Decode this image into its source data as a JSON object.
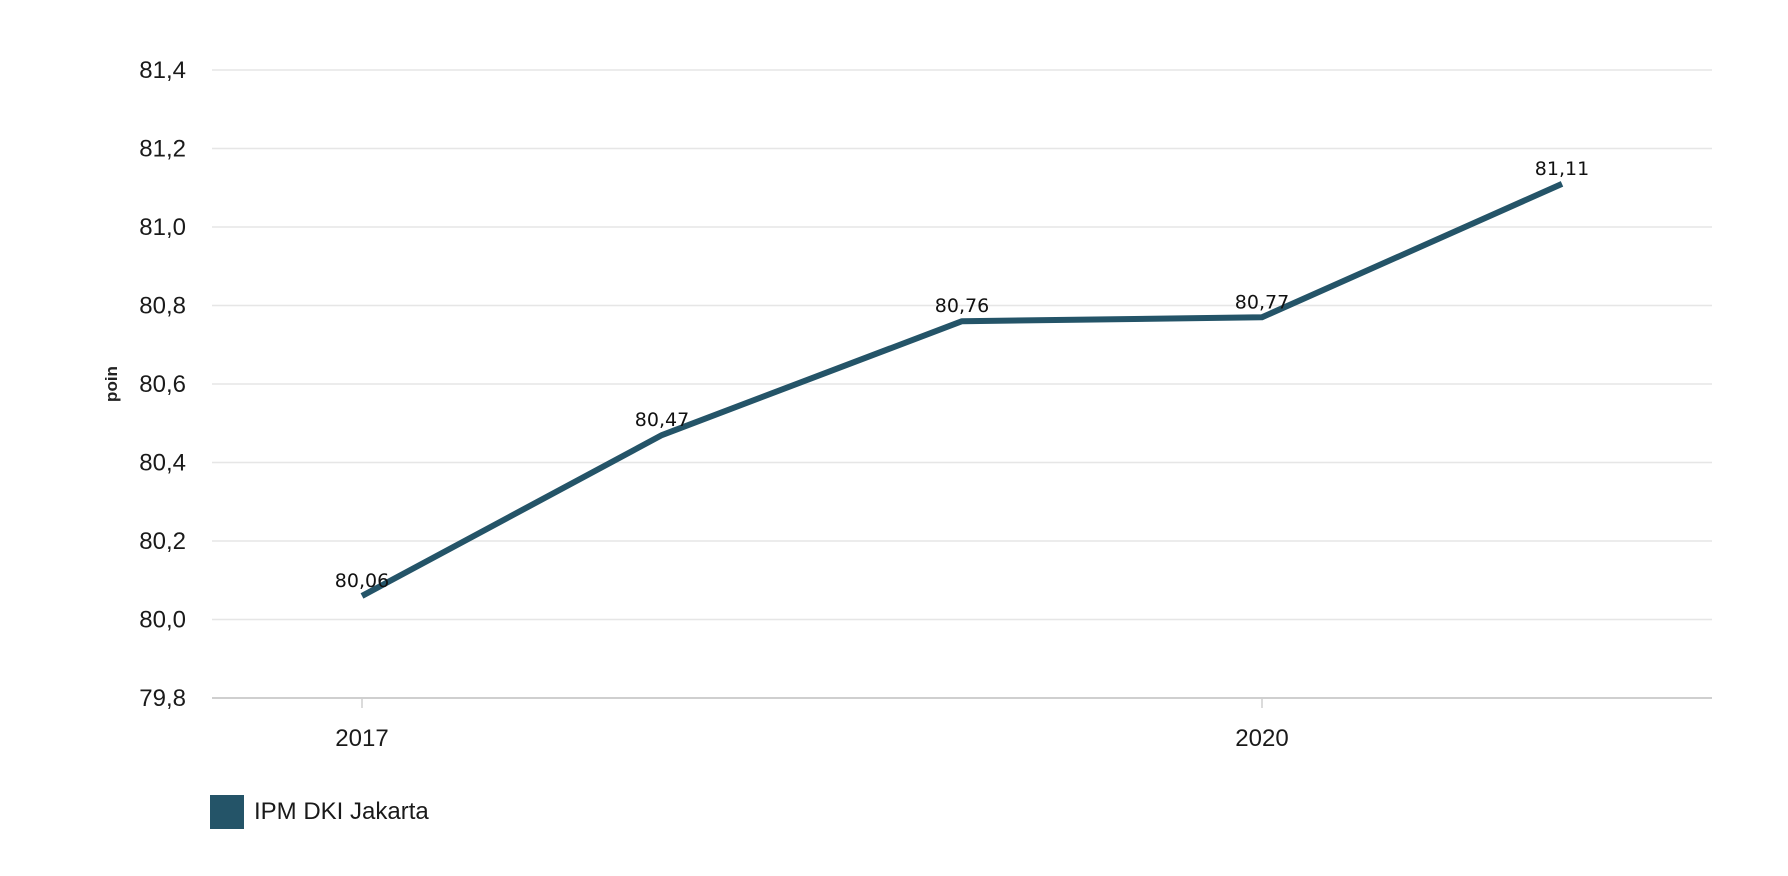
{
  "chart_data": {
    "type": "line",
    "title": "",
    "xlabel": "",
    "ylabel": "poin",
    "ylim": [
      79.8,
      81.4
    ],
    "yticks": [
      "79,8",
      "80,0",
      "80,2",
      "80,4",
      "80,6",
      "80,8",
      "81,0",
      "81,2",
      "81,4"
    ],
    "ytick_values": [
      79.8,
      80.0,
      80.2,
      80.4,
      80.6,
      80.8,
      81.0,
      81.2,
      81.4
    ],
    "x": [
      2017,
      2018,
      2019,
      2020,
      2021
    ],
    "xticks": [
      "2017",
      "2020"
    ],
    "xtick_values": [
      2017,
      2020
    ],
    "series": [
      {
        "name": "IPM DKI Jakarta",
        "values": [
          80.06,
          80.47,
          80.76,
          80.77,
          81.11
        ],
        "labels": [
          "80,06",
          "80,47",
          "80,76",
          "80,77",
          "81,11"
        ],
        "color": "#245468"
      }
    ],
    "grid": true,
    "legend": "bottom-left"
  }
}
